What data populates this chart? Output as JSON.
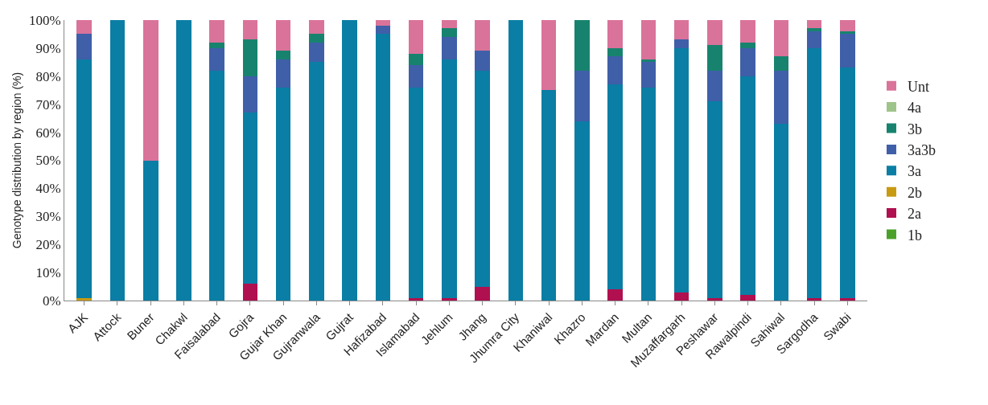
{
  "chart_data": {
    "type": "bar",
    "stacked": true,
    "ylabel": "Genotype distribution by region (%)",
    "categories": [
      "AJK",
      "Attock",
      "Buner",
      "Chakwl",
      "Faisalabad",
      "Gojra",
      "Gujar Khan",
      "Gujranwala",
      "Gujrat",
      "Hafizabad",
      "Islamabad",
      "Jehlum",
      "Jhang",
      "Jhumra City",
      "Khaniwal",
      "Khazro",
      "Mardan",
      "Multan",
      "Muzaffargarh",
      "Peshawar",
      "Rawalpindi",
      "Sahiwal",
      "Sargodha",
      "Swabi"
    ],
    "series": [
      {
        "name": "1b",
        "color": "#4aa12a",
        "values": [
          0,
          0,
          0,
          0,
          0,
          0,
          0,
          0,
          0,
          0,
          0,
          0,
          0,
          0,
          0,
          0,
          0,
          0,
          0,
          0,
          0,
          0,
          0,
          0
        ]
      },
      {
        "name": "2a",
        "color": "#b0104f",
        "values": [
          0,
          0,
          0,
          0,
          0,
          6,
          0,
          0,
          0,
          0,
          1,
          1,
          5,
          0,
          0,
          0,
          4,
          0,
          3,
          1,
          2,
          0,
          1,
          1
        ]
      },
      {
        "name": "2b",
        "color": "#c89a12",
        "values": [
          1,
          0,
          0,
          0,
          0,
          0,
          0,
          0,
          0,
          0,
          0,
          0,
          0,
          0,
          0,
          0,
          0,
          0,
          0,
          0,
          0,
          0,
          0,
          0
        ]
      },
      {
        "name": "3a",
        "color": "#0a7ea4",
        "values": [
          85,
          100,
          50,
          100,
          82,
          61,
          76,
          85,
          100,
          95,
          75,
          85,
          77,
          100,
          75,
          64,
          73,
          76,
          87,
          70,
          78,
          63,
          89,
          82
        ]
      },
      {
        "name": "3a3b",
        "color": "#3f5fa8",
        "values": [
          9,
          0,
          0,
          0,
          8,
          13,
          10,
          7,
          0,
          3,
          8,
          8,
          7,
          0,
          0,
          18,
          10,
          9,
          3,
          11,
          10,
          19,
          6,
          12
        ]
      },
      {
        "name": "3b",
        "color": "#17836f",
        "values": [
          0,
          0,
          0,
          0,
          2,
          13,
          3,
          3,
          0,
          0,
          4,
          3,
          0,
          0,
          0,
          18,
          3,
          1,
          0,
          9,
          2,
          5,
          1,
          1
        ]
      },
      {
        "name": "4a",
        "color": "#9fc48a",
        "values": [
          0,
          0,
          0,
          0,
          0,
          0,
          0,
          0,
          0,
          0,
          0,
          0,
          0,
          0,
          0,
          0,
          0,
          0,
          0,
          0,
          0,
          0,
          0,
          0
        ]
      },
      {
        "name": "Unt",
        "color": "#d9739a",
        "values": [
          5,
          0,
          50,
          0,
          8,
          7,
          11,
          5,
          0,
          2,
          12,
          3,
          11,
          0,
          25,
          0,
          10,
          14,
          7,
          9,
          8,
          13,
          3,
          4
        ]
      }
    ],
    "ylim": [
      0,
      100
    ],
    "yticks": [
      {
        "value": 0,
        "label": "0%"
      },
      {
        "value": 10,
        "label": "10%"
      },
      {
        "value": 20,
        "label": "20%"
      },
      {
        "value": 30,
        "label": "30%"
      },
      {
        "value": 40,
        "label": "40%"
      },
      {
        "value": 50,
        "label": "50%"
      },
      {
        "value": 60,
        "label": "60%"
      },
      {
        "value": 70,
        "label": "70%"
      },
      {
        "value": 80,
        "label": "80%"
      },
      {
        "value": 90,
        "label": "90%"
      },
      {
        "value": 100,
        "label": "100%"
      }
    ],
    "grid": false,
    "legend": "right"
  }
}
